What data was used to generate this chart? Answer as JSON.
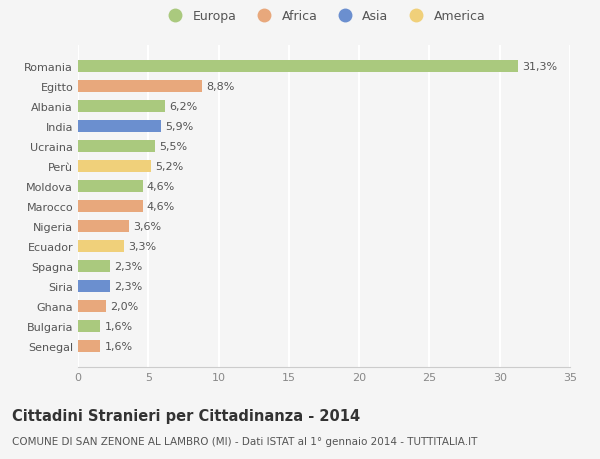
{
  "countries": [
    "Romania",
    "Egitto",
    "Albania",
    "India",
    "Ucraina",
    "Perù",
    "Moldova",
    "Marocco",
    "Nigeria",
    "Ecuador",
    "Spagna",
    "Siria",
    "Ghana",
    "Bulgaria",
    "Senegal"
  ],
  "values": [
    31.3,
    8.8,
    6.2,
    5.9,
    5.5,
    5.2,
    4.6,
    4.6,
    3.6,
    3.3,
    2.3,
    2.3,
    2.0,
    1.6,
    1.6
  ],
  "labels": [
    "31,3%",
    "8,8%",
    "6,2%",
    "5,9%",
    "5,5%",
    "5,2%",
    "4,6%",
    "4,6%",
    "3,6%",
    "3,3%",
    "2,3%",
    "2,3%",
    "2,0%",
    "1,6%",
    "1,6%"
  ],
  "continents": [
    "Europa",
    "Africa",
    "Europa",
    "Asia",
    "Europa",
    "America",
    "Europa",
    "Africa",
    "Africa",
    "America",
    "Europa",
    "Asia",
    "Africa",
    "Europa",
    "Africa"
  ],
  "colors": {
    "Europa": "#aac97e",
    "Africa": "#e8a87c",
    "Asia": "#6b8fcf",
    "America": "#f0d07a"
  },
  "legend_order": [
    "Europa",
    "Africa",
    "Asia",
    "America"
  ],
  "xlim": [
    0,
    35
  ],
  "xticks": [
    0,
    5,
    10,
    15,
    20,
    25,
    30,
    35
  ],
  "title": "Cittadini Stranieri per Cittadinanza - 2014",
  "subtitle": "COMUNE DI SAN ZENONE AL LAMBRO (MI) - Dati ISTAT al 1° gennaio 2014 - TUTTITALIA.IT",
  "title_fontsize": 10.5,
  "subtitle_fontsize": 7.5,
  "bar_height": 0.62,
  "background_color": "#f5f5f5",
  "grid_color": "#ffffff",
  "label_fontsize": 8,
  "tick_fontsize": 8
}
